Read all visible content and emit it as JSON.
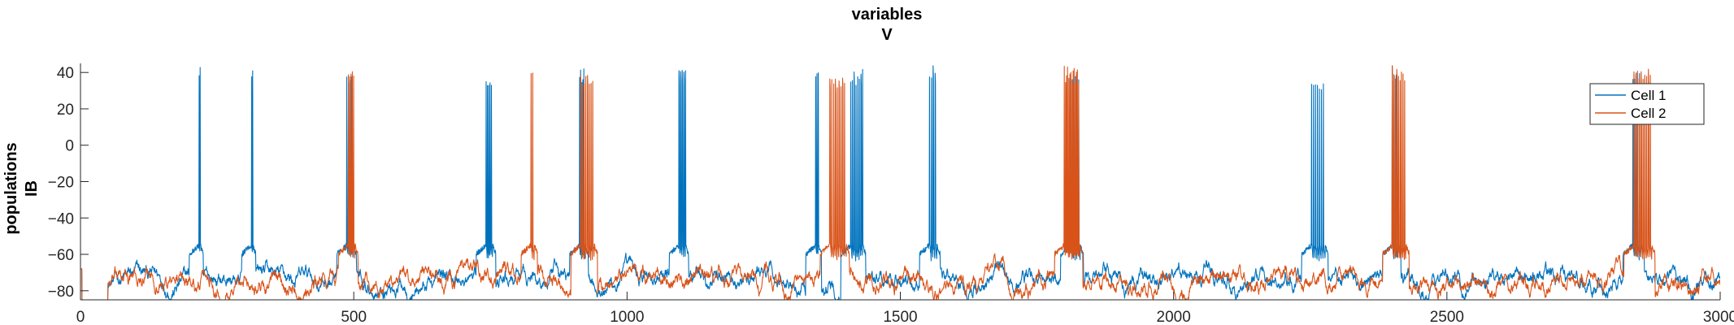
{
  "chart_data": {
    "type": "line",
    "title": "variables",
    "subtitle": "V",
    "ylabel_line1": "populations",
    "ylabel_line2": "IB",
    "xlabel": "",
    "xlim": [
      0,
      3000
    ],
    "ylim": [
      -85,
      45
    ],
    "xticks": [
      0,
      500,
      1000,
      1500,
      2000,
      2500,
      3000
    ],
    "yticks": [
      -80,
      -60,
      -40,
      -20,
      0,
      20,
      40
    ],
    "grid": false,
    "legend_position": "top-right",
    "series": [
      {
        "name": "Cell 1",
        "color": "#0072BD",
        "baseline_mean": -74,
        "noise_amplitude": 5,
        "bursts": [
          {
            "t": 217,
            "duration": 2,
            "spikes": 1,
            "peak": 43
          },
          {
            "t": 313,
            "duration": 2,
            "spikes": 1,
            "peak": 44
          },
          {
            "t": 487,
            "duration": 12,
            "spikes": 4,
            "peak": 40
          },
          {
            "t": 742,
            "duration": 12,
            "spikes": 5,
            "peak": 39
          },
          {
            "t": 913,
            "duration": 10,
            "spikes": 5,
            "peak": 42
          },
          {
            "t": 1095,
            "duration": 12,
            "spikes": 4,
            "peak": 42
          },
          {
            "t": 1345,
            "duration": 5,
            "spikes": 2,
            "peak": 41
          },
          {
            "t": 1409,
            "duration": 22,
            "spikes": 7,
            "peak": 42
          },
          {
            "t": 1553,
            "duration": 14,
            "spikes": 4,
            "peak": 44
          },
          {
            "t": 1811,
            "duration": 18,
            "spikes": 6,
            "peak": 42
          },
          {
            "t": 2252,
            "duration": 25,
            "spikes": 7,
            "peak": 39
          },
          {
            "t": 2400,
            "duration": 10,
            "spikes": 3,
            "peak": 44
          },
          {
            "t": 2840,
            "duration": 15,
            "spikes": 5,
            "peak": 44
          }
        ]
      },
      {
        "name": "Cell 2",
        "color": "#D95319",
        "baseline_mean": -75,
        "noise_amplitude": 5,
        "bursts": [
          {
            "t": 490,
            "duration": 12,
            "spikes": 5,
            "peak": 44
          },
          {
            "t": 824,
            "duration": 6,
            "spikes": 2,
            "peak": 44
          },
          {
            "t": 915,
            "duration": 25,
            "spikes": 8,
            "peak": 41
          },
          {
            "t": 1371,
            "duration": 30,
            "spikes": 9,
            "peak": 39
          },
          {
            "t": 1800,
            "duration": 28,
            "spikes": 14,
            "peak": 44
          },
          {
            "t": 2400,
            "duration": 25,
            "spikes": 9,
            "peak": 44
          },
          {
            "t": 2842,
            "duration": 33,
            "spikes": 10,
            "peak": 44
          }
        ]
      }
    ]
  }
}
